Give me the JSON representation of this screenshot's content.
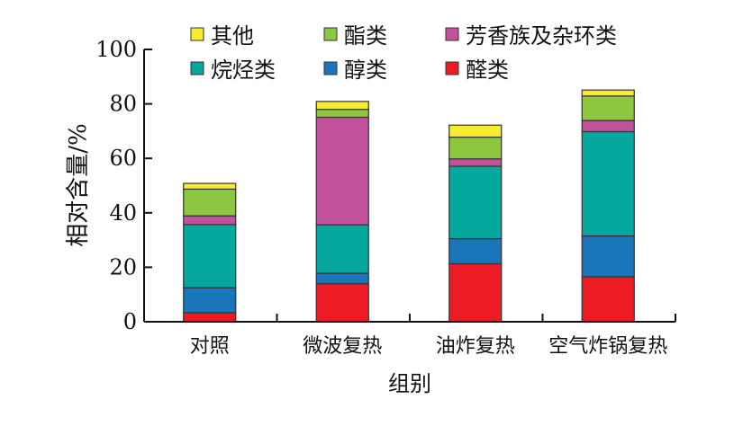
{
  "chart_data": {
    "type": "bar",
    "stacked": true,
    "categories": [
      "对照",
      "微波复热",
      "油炸复热",
      "空气炸锅复热"
    ],
    "series": [
      {
        "name": "醛类",
        "color": "#ed1c24",
        "values": [
          3.3,
          14.0,
          21.3,
          16.5
        ]
      },
      {
        "name": "醇类",
        "color": "#1b75bb",
        "values": [
          9.2,
          3.8,
          9.2,
          15.0
        ]
      },
      {
        "name": "烷烃类",
        "color": "#06a79d",
        "values": [
          23.2,
          17.8,
          26.6,
          38.3
        ]
      },
      {
        "name": "芳香族及杂环类",
        "color": "#c2519c",
        "values": [
          3.2,
          39.5,
          2.7,
          4.1
        ]
      },
      {
        "name": "酯类",
        "color": "#8dc63f",
        "values": [
          9.8,
          2.9,
          8.0,
          9.0
        ]
      },
      {
        "name": "其他",
        "color": "#f7ec2f",
        "values": [
          2.1,
          2.9,
          4.4,
          2.2
        ]
      }
    ],
    "legend_order": [
      5,
      4,
      3,
      2,
      1,
      0
    ],
    "xlabel": "组别",
    "ylabel": "相对含量/%",
    "ylim": [
      0,
      100
    ],
    "yticks": [
      0,
      20,
      40,
      60,
      80,
      100
    ],
    "grid": false,
    "legend_position": "top"
  }
}
